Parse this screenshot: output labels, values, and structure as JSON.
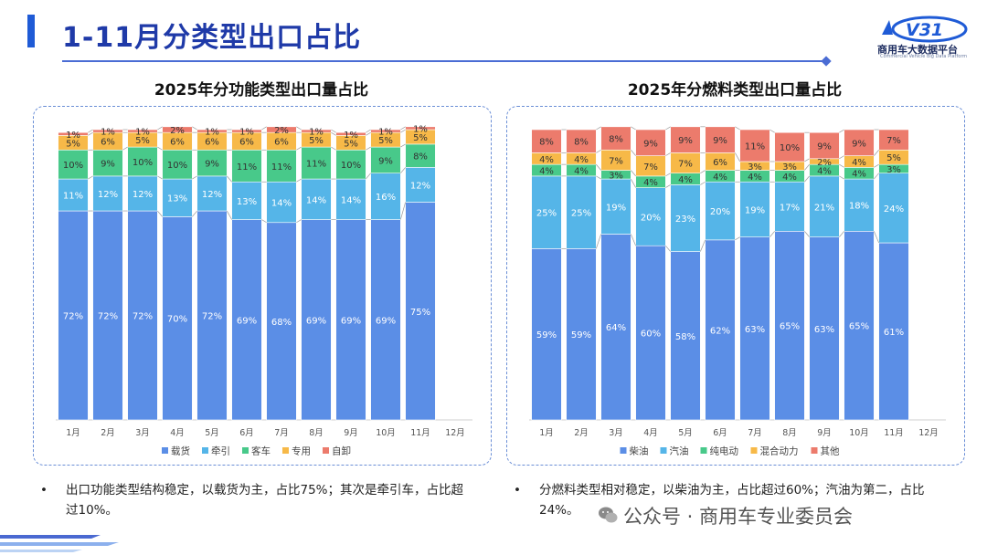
{
  "page": {
    "title": "1-11月分类型出口占比",
    "logo_text": "V31",
    "logo_name": "商用车大数据平台",
    "logo_sub": "Commercial Vehicle Big Data Platform",
    "watermark": "公众号 · 商用车专业委员会"
  },
  "notes": {
    "left": "出口功能类型结构稳定，以载货为主，占比75%；其次是牵引车，占比超过10%。",
    "right": "分燃料类型相对稳定，以柴油为主，占比超过60%；汽油为第二，占比24%。",
    "bullet": "•"
  },
  "chart_data": [
    {
      "type": "bar",
      "stacked": true,
      "title": "2025年分功能类型出口量占比",
      "categories": [
        "1月",
        "2月",
        "3月",
        "4月",
        "5月",
        "6月",
        "7月",
        "8月",
        "9月",
        "10月",
        "11月",
        "12月"
      ],
      "ylim": [
        0,
        100
      ],
      "legend_position": "bottom",
      "series": [
        {
          "name": "载货",
          "color": "#5b8ee6",
          "values": [
            72,
            72,
            72,
            70,
            72,
            69,
            68,
            69,
            69,
            69,
            75,
            null
          ]
        },
        {
          "name": "牵引",
          "color": "#55b5e8",
          "values": [
            11,
            12,
            12,
            13,
            12,
            13,
            14,
            14,
            14,
            16,
            12,
            null
          ]
        },
        {
          "name": "客车",
          "color": "#48c98a",
          "values": [
            10,
            9,
            10,
            10,
            9,
            11,
            11,
            11,
            10,
            9,
            8,
            null
          ]
        },
        {
          "name": "专用",
          "color": "#f7b948",
          "values": [
            5,
            6,
            5,
            6,
            6,
            6,
            6,
            5,
            5,
            5,
            5,
            null
          ]
        },
        {
          "name": "自卸",
          "color": "#ec7b6c",
          "values": [
            1,
            1,
            1,
            2,
            1,
            1,
            2,
            1,
            1,
            1,
            1,
            null
          ]
        }
      ]
    },
    {
      "type": "bar",
      "stacked": true,
      "title": "2025年分燃料类型出口量占比",
      "categories": [
        "1月",
        "2月",
        "3月",
        "4月",
        "5月",
        "6月",
        "7月",
        "8月",
        "9月",
        "10月",
        "11月",
        "12月"
      ],
      "ylim": [
        0,
        100
      ],
      "legend_position": "bottom",
      "series": [
        {
          "name": "柴油",
          "color": "#5b8ee6",
          "values": [
            59,
            59,
            64,
            60,
            58,
            62,
            63,
            65,
            63,
            65,
            61,
            null
          ]
        },
        {
          "name": "汽油",
          "color": "#55b5e8",
          "values": [
            25,
            25,
            19,
            20,
            23,
            20,
            19,
            17,
            21,
            18,
            24,
            null
          ]
        },
        {
          "name": "纯电动",
          "color": "#48c98a",
          "values": [
            4,
            4,
            3,
            4,
            4,
            4,
            4,
            4,
            4,
            4,
            3,
            null
          ]
        },
        {
          "name": "混合动力",
          "color": "#f7b948",
          "values": [
            4,
            4,
            7,
            7,
            7,
            6,
            3,
            3,
            2,
            4,
            5,
            null
          ]
        },
        {
          "name": "其他",
          "color": "#ec7b6c",
          "values": [
            8,
            8,
            8,
            9,
            9,
            9,
            11,
            10,
            9,
            9,
            7,
            null
          ]
        }
      ]
    }
  ]
}
